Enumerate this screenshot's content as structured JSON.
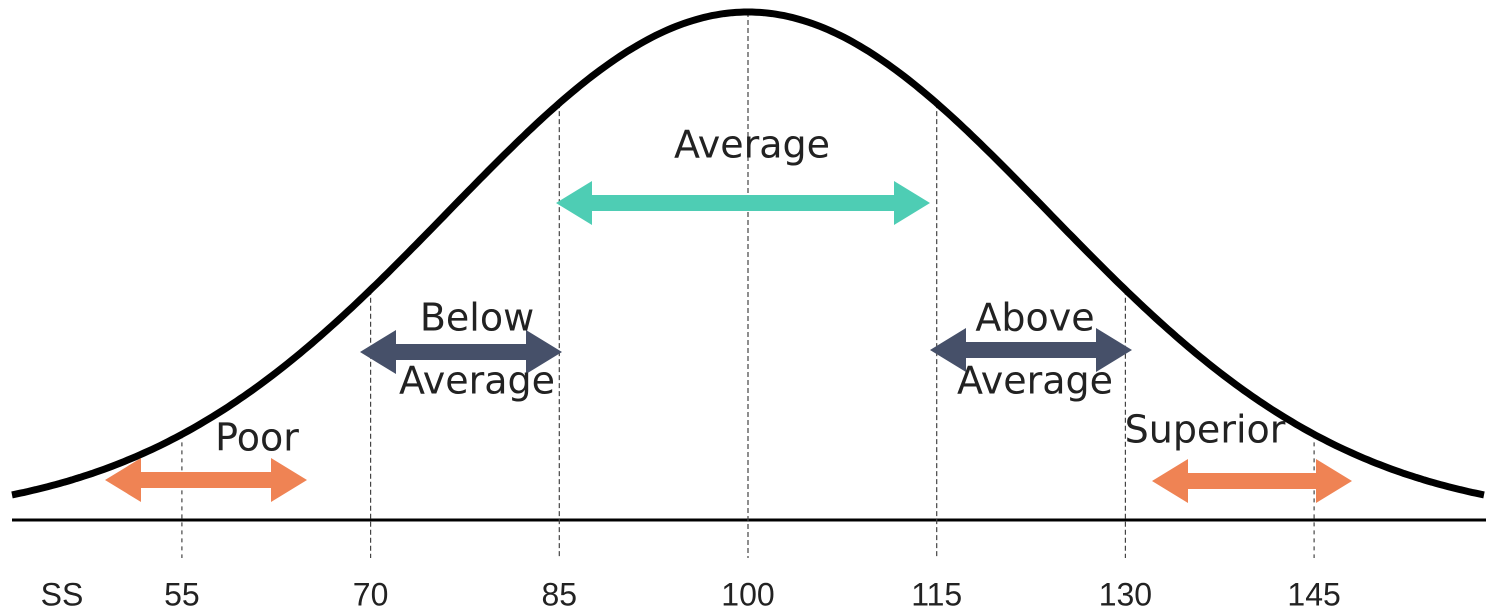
{
  "axis_label": "SS",
  "ticks": [
    55,
    70,
    85,
    100,
    115,
    130,
    145
  ],
  "bands": [
    {
      "lines": [
        "Poor"
      ],
      "color": "#ef8354"
    },
    {
      "lines": [
        "Below",
        "Average"
      ],
      "color": "#465069"
    },
    {
      "lines": [
        "Average"
      ],
      "color": "#4ecdb4"
    },
    {
      "lines": [
        "Above",
        "Average"
      ],
      "color": "#465069"
    },
    {
      "lines": [
        "Superior"
      ],
      "color": "#ef8354"
    }
  ]
}
